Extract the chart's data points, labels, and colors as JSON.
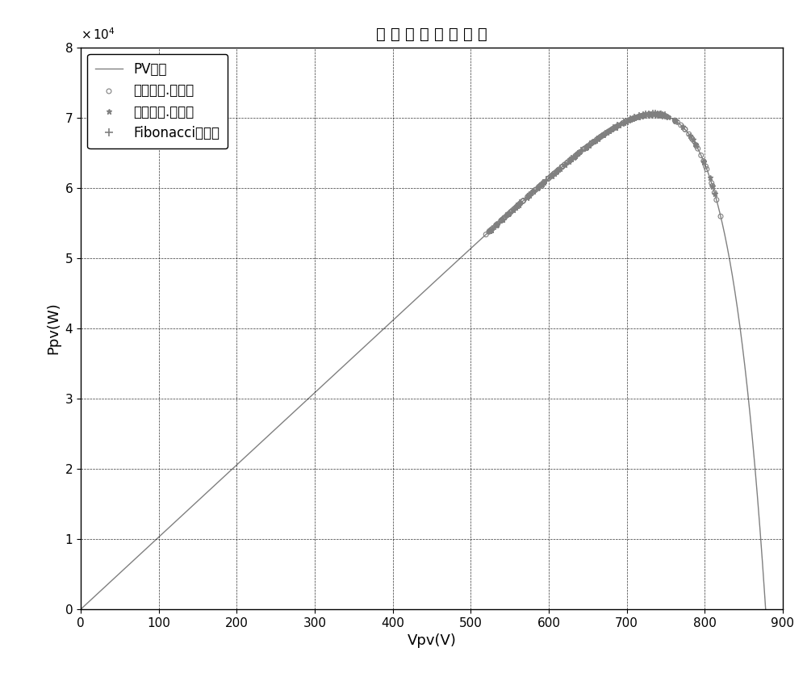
{
  "title": "光 伏 电 池 功 率 曲 线",
  "xlabel": "Vpv(V)",
  "ylabel": "Ppv(W)",
  "xlim": [
    0,
    900
  ],
  "ylim": [
    0,
    80000
  ],
  "xticks": [
    0,
    100,
    200,
    300,
    400,
    500,
    600,
    700,
    800,
    900
  ],
  "yticks": [
    0,
    10000,
    20000,
    30000,
    40000,
    50000,
    60000,
    70000,
    80000
  ],
  "ytick_labels": [
    "0",
    "1",
    "2",
    "3",
    "4",
    "5",
    "6",
    "7",
    "8"
  ],
  "legend_pv": "PV曲线",
  "legend_small": "固定步长.小步长",
  "legend_large": "固定步长.大步长",
  "legend_fib": "Fibonacci变步长",
  "pv_color": "#808080",
  "marker_color": "#808080",
  "background": "#ffffff",
  "Voc": 878,
  "Vmpp": 735,
  "Pmpp": 70500
}
